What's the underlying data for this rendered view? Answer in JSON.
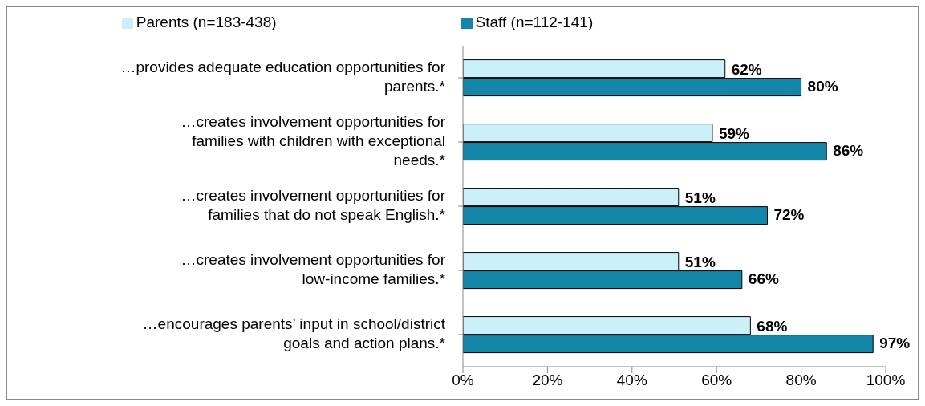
{
  "chart_data": {
    "type": "bar",
    "orientation": "horizontal",
    "categories": [
      "…provides adequate education opportunities for parents.*",
      "…creates involvement opportunities for families with children with exceptional needs.*",
      "…creates involvement opportunities for families that do not speak English.*",
      "…creates involvement opportunities for low-income families.*",
      "…encourages parents’ input in school/district goals and action plans.*"
    ],
    "series": [
      {
        "name": "Parents (n=183-438)",
        "color": "#ccf0fa",
        "values": [
          62,
          59,
          51,
          51,
          68
        ],
        "value_labels": [
          "62%",
          "59%",
          "51%",
          "51%",
          "68%"
        ]
      },
      {
        "name": "Staff (n=112-141)",
        "color": "#1486a8",
        "values": [
          80,
          86,
          72,
          66,
          97
        ],
        "value_labels": [
          "80%",
          "86%",
          "72%",
          "66%",
          "97%"
        ]
      }
    ],
    "xlim": [
      0,
      100
    ],
    "xticks": [
      {
        "value": 0,
        "label": "0%"
      },
      {
        "value": 20,
        "label": "20%"
      },
      {
        "value": 40,
        "label": "40%"
      },
      {
        "value": 60,
        "label": "60%"
      },
      {
        "value": 80,
        "label": "80%"
      },
      {
        "value": 100,
        "label": "100%"
      }
    ],
    "legend": "top",
    "grid": false
  }
}
